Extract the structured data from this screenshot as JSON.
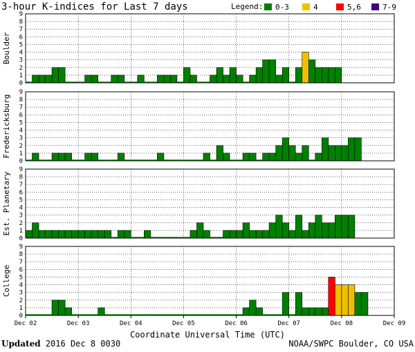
{
  "footer": {
    "updated_label": "Updated",
    "timestamp": "2016 Dec  8 0030",
    "source": "NOAA/SWPC Boulder, CO USA"
  },
  "chart_data": {
    "type": "bar",
    "title": "3-hour K-indices for Last 7 days",
    "xlabel": "Coordinate Universal Time (UTC)",
    "x_ticks": [
      "Dec 02",
      "Dec 03",
      "Dec 04",
      "Dec 05",
      "Dec 06",
      "Dec 07",
      "Dec 08",
      "Dec 09"
    ],
    "ylim": [
      0,
      9
    ],
    "y_ticks": [
      0,
      1,
      2,
      3,
      4,
      5,
      6,
      7,
      8,
      9
    ],
    "legend": {
      "title": "Legend:",
      "placement": "top-right",
      "entries": [
        {
          "label": "0-3",
          "color": "#008000"
        },
        {
          "label": "4",
          "color": "#f0c000"
        },
        {
          "label": "5,6",
          "color": "#ff0000"
        },
        {
          "label": "7-9",
          "color": "#400080"
        }
      ]
    },
    "grid": "horizontal",
    "panels": [
      {
        "name": "Boulder",
        "values": [
          0,
          1,
          1,
          1,
          2,
          2,
          0,
          0,
          0,
          1,
          1,
          0,
          0,
          1,
          1,
          0,
          0,
          1,
          0,
          0,
          1,
          1,
          1,
          0,
          2,
          1,
          0,
          0,
          1,
          2,
          1,
          2,
          1,
          0,
          1,
          2,
          3,
          3,
          1,
          2,
          0,
          2,
          4,
          3,
          2,
          2,
          2,
          2
        ]
      },
      {
        "name": "Fredericksburg",
        "values": [
          0,
          1,
          0,
          0,
          1,
          1,
          1,
          0,
          0,
          1,
          1,
          0,
          0,
          0,
          1,
          0,
          0,
          0,
          0,
          0,
          1,
          0,
          0,
          0,
          0,
          0,
          0,
          1,
          0,
          2,
          1,
          0,
          0,
          1,
          1,
          0,
          1,
          1,
          2,
          3,
          2,
          1,
          2,
          0,
          1,
          3,
          2,
          2,
          2,
          3,
          3
        ]
      },
      {
        "name": "Est. Planetary",
        "values": [
          1,
          2,
          1,
          1,
          1,
          1,
          1,
          1,
          1,
          1,
          1,
          1,
          1,
          0,
          1,
          1,
          0,
          0,
          1,
          0,
          0,
          0,
          0,
          0,
          0,
          1,
          2,
          1,
          0,
          0,
          1,
          1,
          1,
          2,
          1,
          1,
          1,
          2,
          3,
          2,
          1,
          3,
          1,
          2,
          3,
          2,
          2,
          3,
          3,
          3
        ]
      },
      {
        "name": "College",
        "values": [
          0,
          0,
          0,
          0,
          2,
          2,
          1,
          0,
          0,
          0,
          0,
          1,
          0,
          0,
          0,
          0,
          0,
          0,
          0,
          0,
          0,
          0,
          0,
          0,
          0,
          0,
          0,
          0,
          0,
          0,
          0,
          0,
          0,
          1,
          2,
          1,
          0,
          0,
          0,
          3,
          0,
          3,
          1,
          1,
          1,
          1,
          5,
          4,
          4,
          4,
          3,
          3
        ]
      }
    ]
  }
}
